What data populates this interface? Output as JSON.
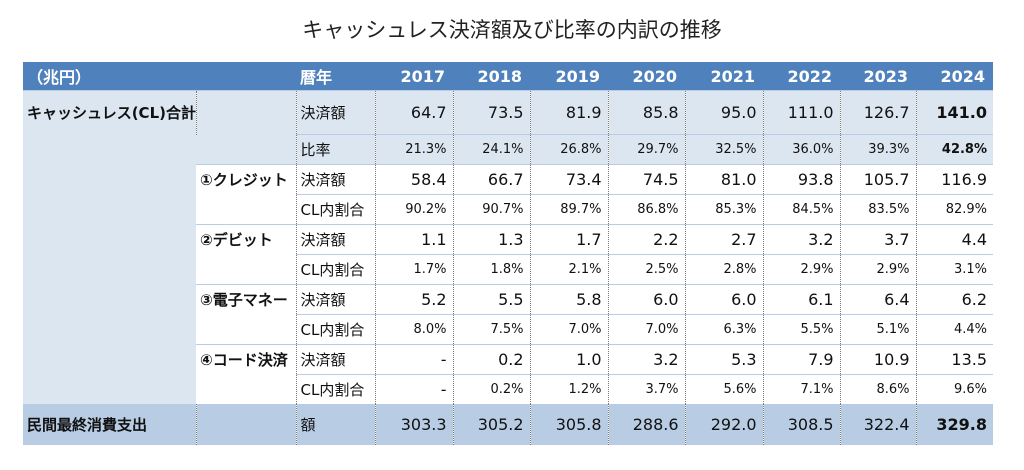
{
  "title": "キャッシュレス決済額及び比率の内訳の推移",
  "header": {
    "unit": "（兆円）",
    "year_label": "暦年",
    "years": [
      "2017",
      "2018",
      "2019",
      "2020",
      "2021",
      "2022",
      "2023",
      "2024"
    ]
  },
  "colors": {
    "header": "#4f81bd",
    "light": "#dce6f1",
    "footer": "#b8cce4"
  },
  "rows": [
    {
      "group": "キャッシュレス(CL)合計",
      "sub": "",
      "item": "決済額",
      "values": [
        "64.7",
        "73.5",
        "81.9",
        "85.8",
        "95.0",
        "111.0",
        "126.7",
        "141.0"
      ]
    },
    {
      "group": "",
      "sub": "",
      "item": "比率",
      "values": [
        "21.3%",
        "24.1%",
        "26.8%",
        "29.7%",
        "32.5%",
        "36.0%",
        "39.3%",
        "42.8%"
      ]
    },
    {
      "group": "",
      "sub": "①クレジット",
      "item": "決済額",
      "values": [
        "58.4",
        "66.7",
        "73.4",
        "74.5",
        "81.0",
        "93.8",
        "105.7",
        "116.9"
      ]
    },
    {
      "group": "",
      "sub": "",
      "item": "CL内割合",
      "values": [
        "90.2%",
        "90.7%",
        "89.7%",
        "86.8%",
        "85.3%",
        "84.5%",
        "83.5%",
        "82.9%"
      ]
    },
    {
      "group": "",
      "sub": "②デビット",
      "item": "決済額",
      "values": [
        "1.1",
        "1.3",
        "1.7",
        "2.2",
        "2.7",
        "3.2",
        "3.7",
        "4.4"
      ]
    },
    {
      "group": "",
      "sub": "",
      "item": "CL内割合",
      "values": [
        "1.7%",
        "1.8%",
        "2.1%",
        "2.5%",
        "2.8%",
        "2.9%",
        "2.9%",
        "3.1%"
      ]
    },
    {
      "group": "",
      "sub": "③電子マネー",
      "item": "決済額",
      "values": [
        "5.2",
        "5.5",
        "5.8",
        "6.0",
        "6.0",
        "6.1",
        "6.4",
        "6.2"
      ]
    },
    {
      "group": "",
      "sub": "",
      "item": "CL内割合",
      "values": [
        "8.0%",
        "7.5%",
        "7.0%",
        "7.0%",
        "6.3%",
        "5.5%",
        "5.1%",
        "4.4%"
      ]
    },
    {
      "group": "",
      "sub": "④コード決済",
      "item": "決済額",
      "values": [
        "-",
        "0.2",
        "1.0",
        "3.2",
        "5.3",
        "7.9",
        "10.9",
        "13.5"
      ]
    },
    {
      "group": "",
      "sub": "",
      "item": "CL内割合",
      "values": [
        "-",
        "0.2%",
        "1.2%",
        "3.7%",
        "5.6%",
        "7.1%",
        "8.6%",
        "9.6%"
      ]
    },
    {
      "group": "民間最終消費支出",
      "sub": "",
      "item": "額",
      "values": [
        "303.3",
        "305.2",
        "305.8",
        "288.6",
        "292.0",
        "308.5",
        "322.4",
        "329.8"
      ]
    }
  ]
}
